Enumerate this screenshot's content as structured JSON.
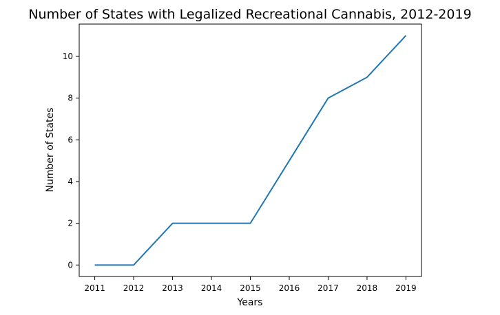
{
  "chart_data": {
    "type": "line",
    "title": "Number of States with Legalized Recreational Cannabis, 2012-2019",
    "xlabel": "Years",
    "ylabel": "Number of States",
    "x": [
      2011,
      2012,
      2013,
      2014,
      2015,
      2016,
      2017,
      2018,
      2019
    ],
    "series": [
      {
        "values": [
          0,
          0,
          2,
          2,
          2,
          5,
          8,
          9,
          11
        ],
        "color": "#1f77b4"
      }
    ],
    "xlim": [
      2010.6,
      2019.4
    ],
    "ylim": [
      -0.55,
      11.55
    ],
    "xticks": [
      "2011",
      "2012",
      "2013",
      "2014",
      "2015",
      "2016",
      "2017",
      "2018",
      "2019"
    ],
    "yticks": [
      "0",
      "2",
      "4",
      "6",
      "8",
      "10"
    ],
    "grid": false,
    "legend": false
  }
}
